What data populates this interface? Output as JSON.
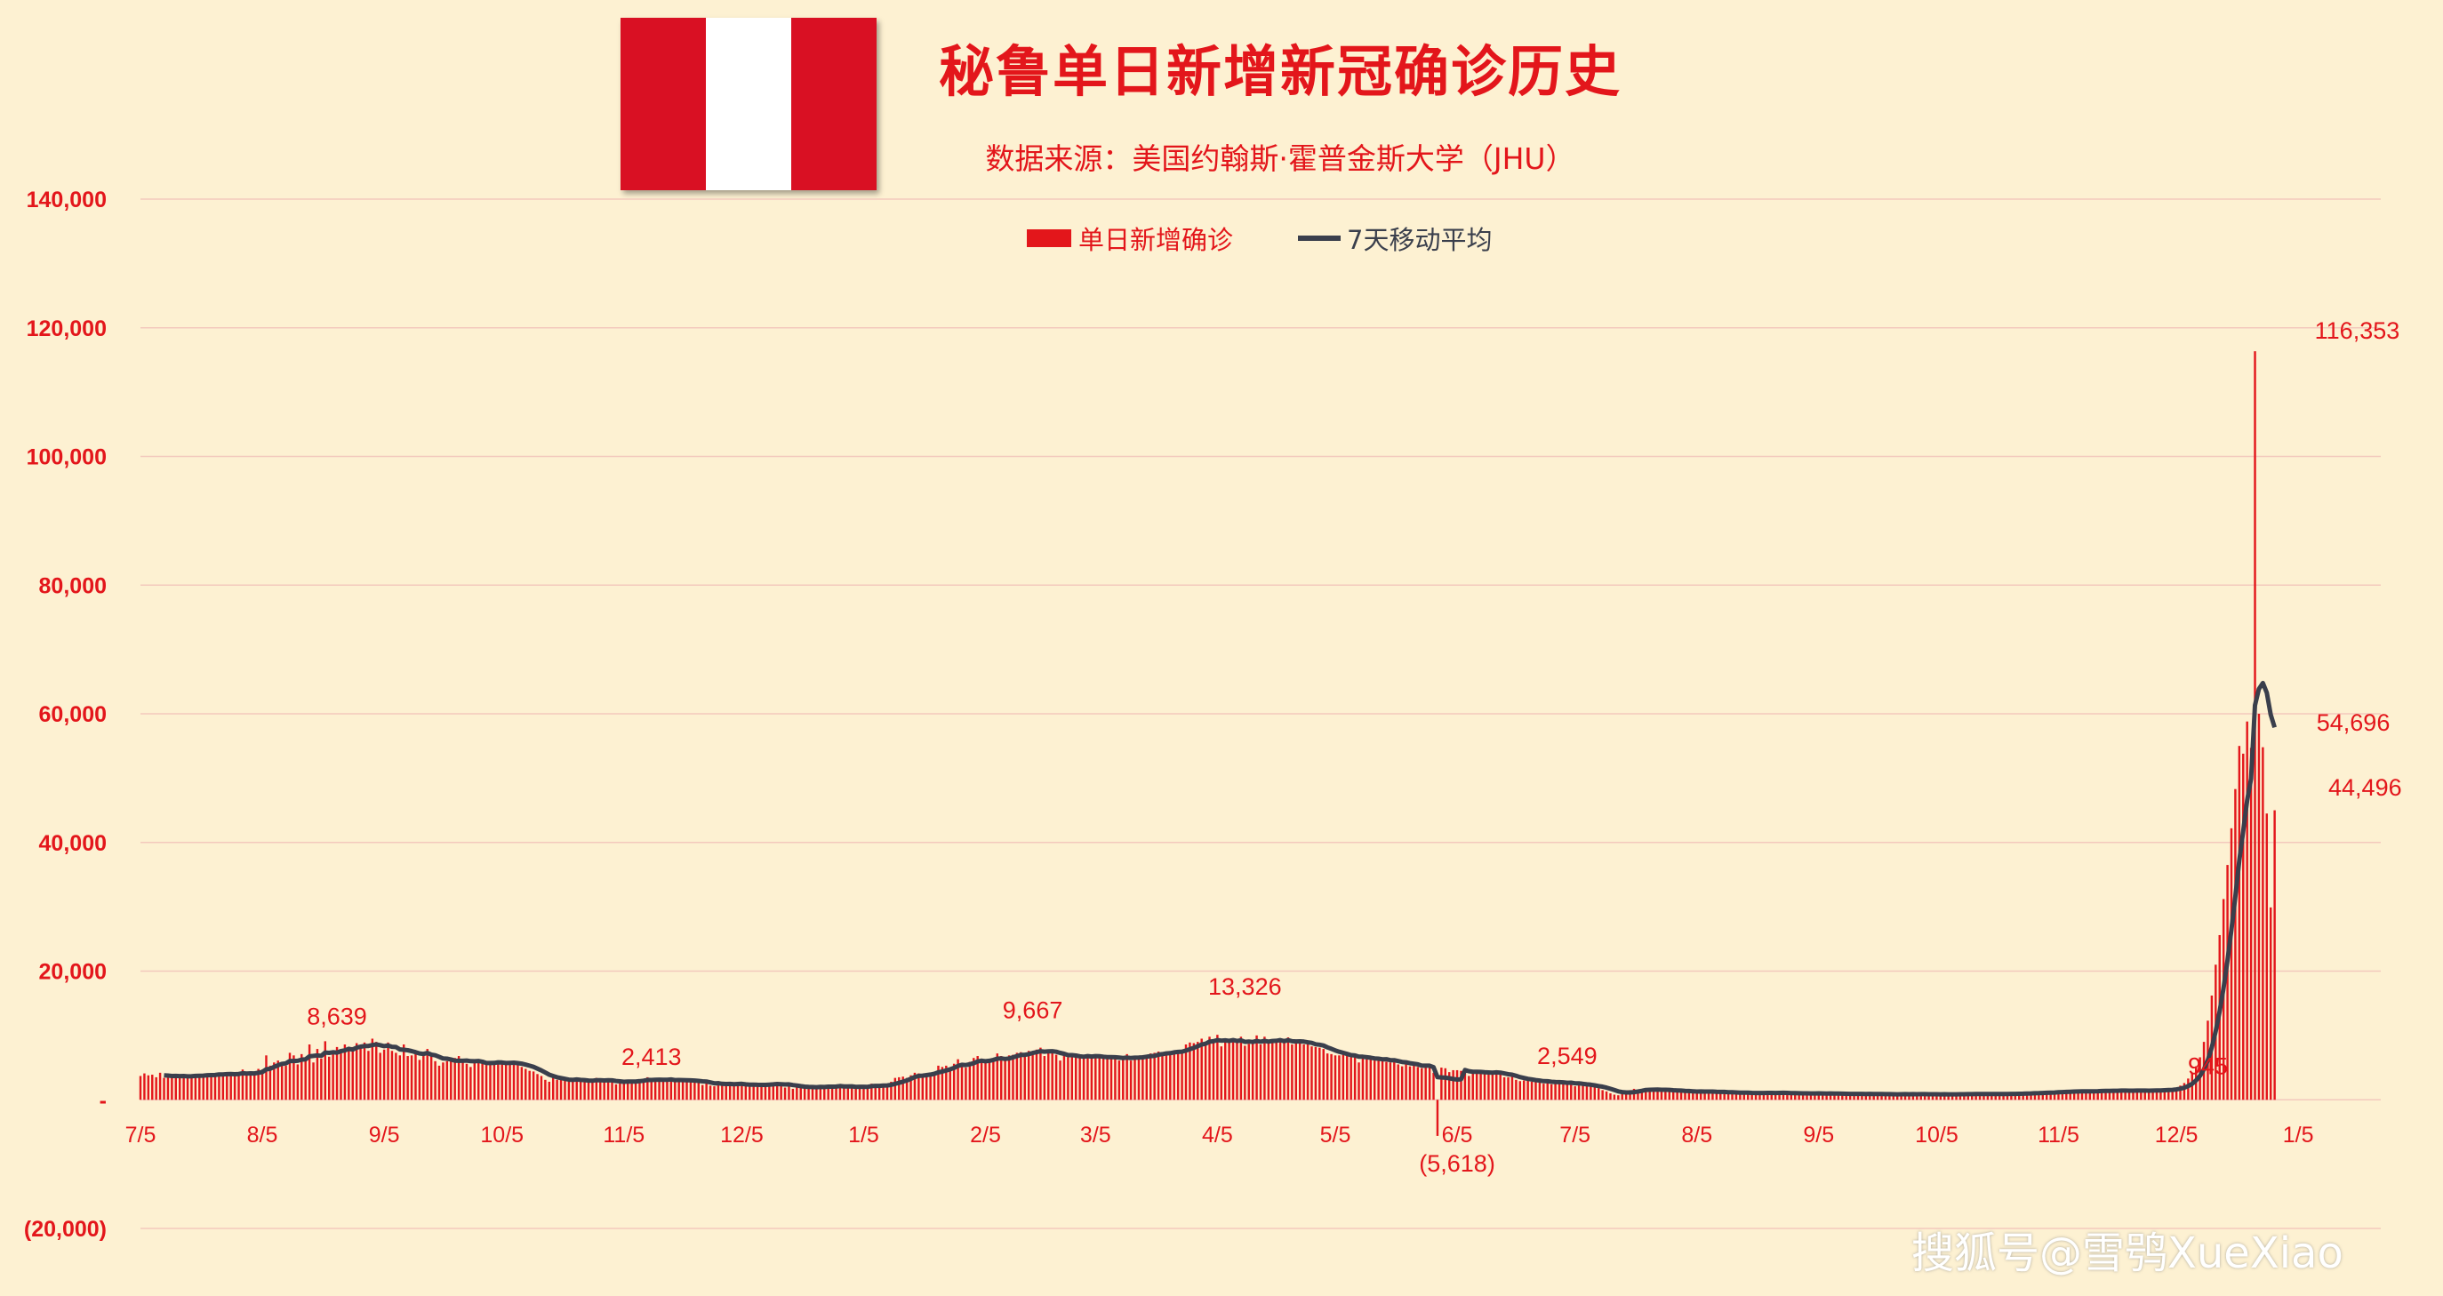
{
  "header": {
    "title": "秘鲁单日新增新冠确诊历史",
    "subtitle": "数据来源：美国约翰斯·霍普金斯大学（JHU）",
    "flag_colors": [
      "#d91023",
      "#ffffff",
      "#d91023"
    ]
  },
  "watermark": "搜狐号@雪鸮XueXiao",
  "colors": {
    "bar": "#e3161b",
    "line": "#3a3f4c",
    "grid": "#f3c9bd",
    "text": "#e3161b"
  },
  "chart_data": {
    "type": "bar",
    "legend": [
      {
        "name": "单日新增确诊",
        "kind": "bar"
      },
      {
        "name": "7天移动平均",
        "kind": "line"
      }
    ],
    "legend_position": "top-center",
    "ylim": [
      -20000,
      140000
    ],
    "yticks": [
      {
        "value": 140000,
        "label": "140,000"
      },
      {
        "value": 120000,
        "label": "120,000"
      },
      {
        "value": 100000,
        "label": "100,000"
      },
      {
        "value": 80000,
        "label": "80,000"
      },
      {
        "value": 60000,
        "label": "60,000"
      },
      {
        "value": 40000,
        "label": "40,000"
      },
      {
        "value": 20000,
        "label": "20,000"
      },
      {
        "value": 0,
        "label": "-"
      },
      {
        "value": -20000,
        "label": "(20,000)"
      }
    ],
    "xticks": [
      {
        "day": 0,
        "label": "7/5"
      },
      {
        "day": 31,
        "label": "8/5"
      },
      {
        "day": 62,
        "label": "9/5"
      },
      {
        "day": 92,
        "label": "10/5"
      },
      {
        "day": 123,
        "label": "11/5"
      },
      {
        "day": 153,
        "label": "12/5"
      },
      {
        "day": 184,
        "label": "1/5"
      },
      {
        "day": 215,
        "label": "2/5"
      },
      {
        "day": 243,
        "label": "3/5"
      },
      {
        "day": 274,
        "label": "4/5"
      },
      {
        "day": 304,
        "label": "5/5"
      },
      {
        "day": 335,
        "label": "6/5"
      },
      {
        "day": 365,
        "label": "7/5"
      },
      {
        "day": 396,
        "label": "8/5"
      },
      {
        "day": 427,
        "label": "9/5"
      },
      {
        "day": 457,
        "label": "10/5"
      },
      {
        "day": 488,
        "label": "11/5"
      },
      {
        "day": 518,
        "label": "12/5"
      },
      {
        "day": 549,
        "label": "1/5"
      }
    ],
    "x_range": [
      0,
      570
    ],
    "daily_series": {
      "name": "单日新增确诊",
      "values": [
        3700,
        4100,
        3800,
        3900,
        3500,
        4200,
        3400,
        3500,
        3600,
        3900,
        3700,
        3600,
        3800,
        3500,
        3900,
        3800,
        4000,
        4100,
        3700,
        3900,
        4200,
        3900,
        4100,
        4100,
        3900,
        4000,
        4700,
        3800,
        4200,
        4000,
        4800,
        4700,
        6900,
        5300,
        5800,
        6100,
        5500,
        5300,
        7300,
        6900,
        5500,
        7100,
        6500,
        8600,
        5800,
        7900,
        6400,
        9100,
        6700,
        7200,
        8200,
        7500,
        8600,
        8200,
        8200,
        8800,
        8300,
        8900,
        7600,
        9500,
        9000,
        7300,
        7800,
        8900,
        7600,
        7300,
        6900,
        8600,
        6800,
        6900,
        7700,
        6200,
        6800,
        7900,
        6900,
        6000,
        5300,
        5800,
        6000,
        6000,
        6500,
        6800,
        6000,
        5600,
        5100,
        5900,
        6300,
        5700,
        5400,
        6000,
        5700,
        5800,
        5700,
        5700,
        5900,
        5600,
        5500,
        5100,
        4800,
        4500,
        4400,
        4000,
        3700,
        3100,
        2800,
        3400,
        3100,
        3500,
        3200,
        2800,
        2800,
        3300,
        2900,
        2900,
        3000,
        3000,
        3400,
        2800,
        3000,
        3100,
        2800,
        2400,
        2600,
        2900,
        3000,
        3100,
        3100,
        3200,
        2800,
        3500,
        2800,
        3300,
        3200,
        3000,
        3200,
        3100,
        2800,
        2900,
        3200,
        3100,
        2800,
        3000,
        2800,
        2300,
        2700,
        2200,
        2100,
        2900,
        2400,
        2600,
        2400,
        2300,
        2500,
        2300,
        2300,
        2100,
        2600,
        2200,
        2200,
        2500,
        2600,
        2600,
        2500,
        2400,
        1900,
        2300,
        1700,
        2100,
        1900,
        2000,
        2100,
        1800,
        2100,
        2100,
        1900,
        2300,
        2000,
        2200,
        2300,
        1800,
        2000,
        2100,
        1700,
        2100,
        2200,
        2200,
        2500,
        2300,
        2100,
        2000,
        2300,
        2800,
        3400,
        3500,
        3600,
        3400,
        3800,
        4200,
        4100,
        3700,
        4000,
        4200,
        4300,
        5300,
        5100,
        5300,
        4900,
        5600,
        6300,
        5600,
        5000,
        5900,
        6500,
        6800,
        6400,
        5700,
        6100,
        6000,
        7200,
        6800,
        6200,
        6900,
        7000,
        7300,
        7400,
        7300,
        7600,
        7400,
        7800,
        8100,
        6800,
        7700,
        7500,
        7000,
        6100,
        6900,
        6600,
        6800,
        7200,
        6700,
        6600,
        6700,
        6500,
        7000,
        6700,
        6600,
        6400,
        6500,
        6600,
        6100,
        6600,
        7100,
        6100,
        6800,
        6600,
        6900,
        6800,
        7200,
        7300,
        7500,
        7400,
        7300,
        7200,
        7700,
        7700,
        7600,
        8600,
        8900,
        8800,
        9000,
        9500,
        8600,
        9800,
        9100,
        10100,
        8300,
        9300,
        8900,
        9400,
        8900,
        9800,
        8400,
        8700,
        8800,
        10000,
        8600,
        9800,
        9000,
        9100,
        8900,
        9500,
        8900,
        9700,
        8600,
        8800,
        9200,
        8600,
        8700,
        8300,
        8200,
        8100,
        7900,
        7200,
        7100,
        6900,
        6900,
        7000,
        6900,
        6600,
        6800,
        5800,
        6900,
        6300,
        6500,
        6100,
        6300,
        6200,
        5900,
        5800,
        6300,
        5500,
        5200,
        5900,
        5200,
        5300,
        5100,
        4900,
        5500,
        5200,
        4200,
        -5618,
        5000,
        4900,
        4300,
        4600,
        4600,
        4500,
        4500,
        3700,
        4300,
        4300,
        4400,
        4200,
        4300,
        4300,
        4000,
        4000,
        3500,
        3500,
        3700,
        3100,
        2900,
        3000,
        3100,
        2800,
        2800,
        3200,
        2500,
        2800,
        2400,
        2800,
        2700,
        2600,
        2700,
        2600,
        2100,
        2400,
        2300,
        2100,
        2200,
        2000,
        1800,
        1500,
        1300,
        1000,
        800,
        700,
        1300,
        1400,
        1500,
        1700,
        1500,
        1600,
        1700,
        1500,
        1500,
        1600,
        1500,
        1500,
        1500,
        1300,
        1300,
        1300,
        1300,
        1300,
        1200,
        1200,
        1400,
        1200,
        1300,
        1300,
        1100,
        1100,
        1200,
        1100,
        1100,
        1100,
        1000,
        1100,
        1100,
        1000,
        1000,
        1100,
        1100,
        1100,
        1100,
        1000,
        1100,
        1100,
        1000,
        900,
        1000,
        1000,
        900,
        1100,
        1000,
        1000,
        1000,
        900,
        900,
        1000,
        900,
        1000,
        900,
        900,
        800,
        900,
        1000,
        900,
        900,
        1000,
        800,
        800,
        900,
        800,
        900,
        800,
        900,
        900,
        900,
        800,
        900,
        800,
        900,
        900,
        800,
        900,
        800,
        800,
        900,
        800,
        900,
        800,
        1000,
        800,
        900,
        900,
        900,
        900,
        900,
        900,
        900,
        900,
        900,
        900,
        900,
        1000,
        900,
        1000,
        1000,
        1100,
        1000,
        1100,
        1100,
        1100,
        1200,
        1200,
        1200,
        1300,
        1300,
        1300,
        1300,
        1300,
        1300,
        1300,
        1300,
        1400,
        1300,
        1400,
        1500,
        1400,
        1400,
        1400,
        1400,
        1500,
        1400,
        1400,
        1400,
        1500,
        1400,
        1400,
        1400,
        1500,
        1500,
        1500,
        1700,
        1600,
        1600,
        1900,
        2200,
        2600,
        3300,
        4200,
        5200,
        6600,
        9000,
        12300,
        16200,
        21000,
        25600,
        31200,
        36500,
        42200,
        48300,
        55000,
        53800,
        58800,
        54696,
        116353,
        60000,
        54800,
        44496,
        29900,
        45000
      ]
    },
    "moving_avg_series": {
      "name": "7天移动平均",
      "window": 7
    },
    "annotations": [
      {
        "day": 50,
        "value": 8639,
        "label": "8,639"
      },
      {
        "day": 130,
        "value": 2413,
        "label": "2,413"
      },
      {
        "day": 227,
        "value": 9667,
        "label": "9,667"
      },
      {
        "day": 281,
        "value": 13326,
        "label": "13,326"
      },
      {
        "day": 335,
        "value": -5618,
        "label": "(5,618)"
      },
      {
        "day": 363,
        "value": 2549,
        "label": "2,549"
      },
      {
        "day": 526,
        "value": 945,
        "label": "945"
      },
      {
        "day": 564,
        "value": 116353,
        "label": "116,353"
      },
      {
        "day": 563,
        "value": 54696,
        "label": "54,696"
      },
      {
        "day": 566,
        "value": 44496,
        "label": "44,496"
      }
    ]
  }
}
